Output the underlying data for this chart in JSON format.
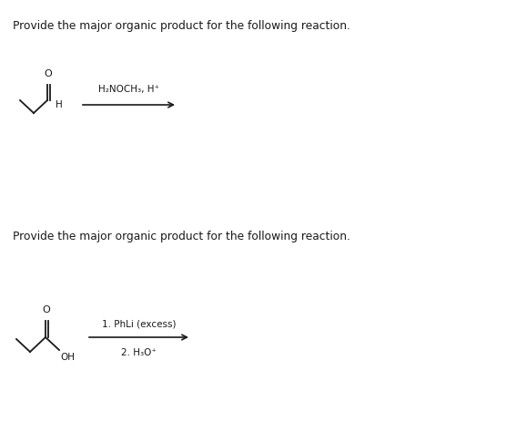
{
  "bg_color": "#ffffff",
  "text_color": "#1a1a1a",
  "title1": "Provide the major organic product for the following reaction.",
  "title2": "Provide the major organic product for the following reaction.",
  "reagent1": "H₂NOCH₃, H⁺",
  "reagent2_line1": "1. PhLi (excess)",
  "reagent2_line2": "2. H₃O⁺",
  "title_fontsize": 8.8,
  "reagent_fontsize": 7.5,
  "mol_lw": 1.3,
  "arrow_lw": 1.2
}
